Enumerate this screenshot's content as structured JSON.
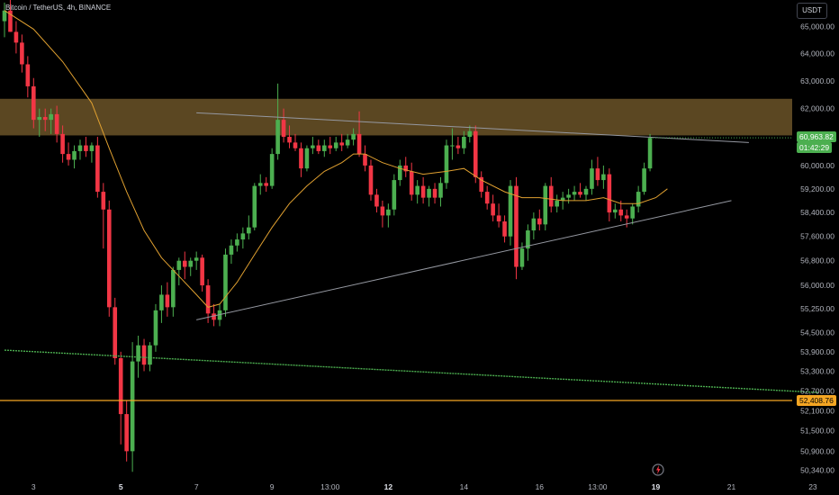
{
  "header": {
    "title": "Bitcoin / TetherUS, 4h, BINANCE",
    "currency_button": "USDT"
  },
  "price_labels": {
    "last_price": "60,963.82",
    "countdown": "01:42:29",
    "level_price": "52,408.76"
  },
  "colors": {
    "up": "#26a69a",
    "up_bright": "#4caf50",
    "down": "#f23645",
    "ma": "#e0a030",
    "zone": "#6b5328",
    "support_line": "#4caf50",
    "level_line": "#f5a623",
    "trendline": "#9598a1"
  },
  "icons": {
    "logo": "tradingview-logo-icon"
  },
  "chart_data": {
    "type": "candlestick",
    "title": "Bitcoin / TetherUS, 4h, BINANCE",
    "timeframe": "4h",
    "y_axis": {
      "scale": "log",
      "range": [
        50150,
        66000
      ],
      "tick_labels": [
        "65,000.00",
        "64,000.00",
        "63,000.00",
        "62,000.00",
        "61,000.00",
        "60,000.00",
        "59,200.00",
        "58,400.00",
        "57,600.00",
        "56,800.00",
        "56,000.00",
        "55,250.00",
        "54,500.00",
        "53,900.00",
        "53,300.00",
        "52,700.00",
        "52,100.00",
        "51,500.00",
        "50,900.00",
        "50,340.00"
      ],
      "tick_values": [
        65000,
        64000,
        63000,
        62000,
        61000,
        60000,
        59200,
        58400,
        57600,
        56800,
        56000,
        55250,
        54500,
        53900,
        53300,
        52700,
        52100,
        51500,
        50900,
        50340
      ]
    },
    "x_axis": {
      "tick_labels": [
        "3",
        "5",
        "7",
        "9",
        "13:00",
        "12",
        "14",
        "16",
        "13:00",
        "19",
        "21",
        "23"
      ],
      "tick_bar_index": [
        5,
        20,
        33,
        46,
        56,
        66,
        79,
        92,
        102,
        112,
        125,
        139
      ],
      "bold_ticks": [
        "5",
        "12",
        "19"
      ]
    },
    "candles": [
      {
        "o": 65200,
        "h": 65900,
        "l": 64600,
        "c": 65600
      },
      {
        "o": 65600,
        "h": 66000,
        "l": 64800,
        "c": 64800
      },
      {
        "o": 64800,
        "h": 65200,
        "l": 64000,
        "c": 64400
      },
      {
        "o": 64400,
        "h": 64700,
        "l": 63300,
        "c": 63600
      },
      {
        "o": 63600,
        "h": 63900,
        "l": 62400,
        "c": 62800
      },
      {
        "o": 62800,
        "h": 63100,
        "l": 61300,
        "c": 61600
      },
      {
        "o": 61600,
        "h": 62000,
        "l": 61000,
        "c": 61700
      },
      {
        "o": 61700,
        "h": 62000,
        "l": 61200,
        "c": 61600
      },
      {
        "o": 61600,
        "h": 62000,
        "l": 61100,
        "c": 61800
      },
      {
        "o": 61800,
        "h": 62100,
        "l": 60800,
        "c": 61100
      },
      {
        "o": 61100,
        "h": 61400,
        "l": 60100,
        "c": 60400
      },
      {
        "o": 60400,
        "h": 60800,
        "l": 60000,
        "c": 60200
      },
      {
        "o": 60200,
        "h": 60700,
        "l": 59900,
        "c": 60500
      },
      {
        "o": 60500,
        "h": 60900,
        "l": 60200,
        "c": 60700
      },
      {
        "o": 60700,
        "h": 61000,
        "l": 60300,
        "c": 60500
      },
      {
        "o": 60500,
        "h": 60800,
        "l": 60100,
        "c": 60700
      },
      {
        "o": 60700,
        "h": 61000,
        "l": 58900,
        "c": 59100
      },
      {
        "o": 59100,
        "h": 59400,
        "l": 57200,
        "c": 58500
      },
      {
        "o": 58500,
        "h": 58800,
        "l": 55000,
        "c": 55300
      },
      {
        "o": 55300,
        "h": 55600,
        "l": 53500,
        "c": 53700
      },
      {
        "o": 53700,
        "h": 53900,
        "l": 51100,
        "c": 52000
      },
      {
        "o": 52000,
        "h": 52400,
        "l": 50600,
        "c": 50900
      },
      {
        "o": 50900,
        "h": 54200,
        "l": 50300,
        "c": 53600
      },
      {
        "o": 53600,
        "h": 54400,
        "l": 53100,
        "c": 54100
      },
      {
        "o": 54100,
        "h": 54300,
        "l": 53300,
        "c": 53500
      },
      {
        "o": 53500,
        "h": 54200,
        "l": 53300,
        "c": 54100
      },
      {
        "o": 54100,
        "h": 55400,
        "l": 53900,
        "c": 55200
      },
      {
        "o": 55200,
        "h": 56000,
        "l": 54800,
        "c": 55700
      },
      {
        "o": 55700,
        "h": 56100,
        "l": 55000,
        "c": 55300
      },
      {
        "o": 55300,
        "h": 56600,
        "l": 55000,
        "c": 56500
      },
      {
        "o": 56500,
        "h": 56900,
        "l": 56000,
        "c": 56800
      },
      {
        "o": 56800,
        "h": 57100,
        "l": 56200,
        "c": 56600
      },
      {
        "o": 56600,
        "h": 56900,
        "l": 56300,
        "c": 56800
      },
      {
        "o": 56800,
        "h": 57100,
        "l": 56500,
        "c": 56900
      },
      {
        "o": 56900,
        "h": 57000,
        "l": 55800,
        "c": 56000
      },
      {
        "o": 56000,
        "h": 56200,
        "l": 54800,
        "c": 55100
      },
      {
        "o": 55100,
        "h": 55400,
        "l": 54700,
        "c": 54900
      },
      {
        "o": 54900,
        "h": 55400,
        "l": 54700,
        "c": 55200
      },
      {
        "o": 55200,
        "h": 57200,
        "l": 55000,
        "c": 57000
      },
      {
        "o": 57000,
        "h": 57500,
        "l": 56700,
        "c": 57300
      },
      {
        "o": 57300,
        "h": 57700,
        "l": 57100,
        "c": 57500
      },
      {
        "o": 57500,
        "h": 57900,
        "l": 57200,
        "c": 57700
      },
      {
        "o": 57700,
        "h": 58300,
        "l": 57500,
        "c": 57900
      },
      {
        "o": 57900,
        "h": 59400,
        "l": 57800,
        "c": 59300
      },
      {
        "o": 59300,
        "h": 59700,
        "l": 59000,
        "c": 59400
      },
      {
        "o": 59400,
        "h": 59600,
        "l": 59100,
        "c": 59300
      },
      {
        "o": 59300,
        "h": 60600,
        "l": 59200,
        "c": 60400
      },
      {
        "o": 60400,
        "h": 62900,
        "l": 60200,
        "c": 61600
      },
      {
        "o": 61600,
        "h": 62000,
        "l": 60800,
        "c": 61000
      },
      {
        "o": 61000,
        "h": 61400,
        "l": 60600,
        "c": 60800
      },
      {
        "o": 60800,
        "h": 61100,
        "l": 60500,
        "c": 60600
      },
      {
        "o": 60600,
        "h": 60800,
        "l": 59600,
        "c": 59900
      },
      {
        "o": 59900,
        "h": 60700,
        "l": 59800,
        "c": 60600
      },
      {
        "o": 60600,
        "h": 61000,
        "l": 60400,
        "c": 60700
      },
      {
        "o": 60700,
        "h": 60900,
        "l": 60400,
        "c": 60500
      },
      {
        "o": 60500,
        "h": 60900,
        "l": 60300,
        "c": 60700
      },
      {
        "o": 60700,
        "h": 61000,
        "l": 60400,
        "c": 60600
      },
      {
        "o": 60600,
        "h": 61000,
        "l": 60500,
        "c": 60800
      },
      {
        "o": 60800,
        "h": 61100,
        "l": 60500,
        "c": 60700
      },
      {
        "o": 60700,
        "h": 61100,
        "l": 60600,
        "c": 60900
      },
      {
        "o": 60900,
        "h": 61300,
        "l": 60700,
        "c": 61100
      },
      {
        "o": 61100,
        "h": 61900,
        "l": 60300,
        "c": 60400
      },
      {
        "o": 60400,
        "h": 60700,
        "l": 59800,
        "c": 60000
      },
      {
        "o": 60000,
        "h": 60200,
        "l": 58800,
        "c": 59000
      },
      {
        "o": 59000,
        "h": 59200,
        "l": 58400,
        "c": 58600
      },
      {
        "o": 58600,
        "h": 58800,
        "l": 57900,
        "c": 58300
      },
      {
        "o": 58300,
        "h": 58700,
        "l": 57900,
        "c": 58500
      },
      {
        "o": 58500,
        "h": 59700,
        "l": 58300,
        "c": 59500
      },
      {
        "o": 59500,
        "h": 60200,
        "l": 59300,
        "c": 60000
      },
      {
        "o": 60000,
        "h": 60300,
        "l": 59600,
        "c": 59800
      },
      {
        "o": 59800,
        "h": 60100,
        "l": 58800,
        "c": 59000
      },
      {
        "o": 59000,
        "h": 59500,
        "l": 58700,
        "c": 59300
      },
      {
        "o": 59300,
        "h": 59600,
        "l": 58700,
        "c": 58900
      },
      {
        "o": 58900,
        "h": 59300,
        "l": 58600,
        "c": 59200
      },
      {
        "o": 59200,
        "h": 59400,
        "l": 58700,
        "c": 58900
      },
      {
        "o": 58900,
        "h": 59600,
        "l": 58600,
        "c": 59400
      },
      {
        "o": 59400,
        "h": 60900,
        "l": 59200,
        "c": 60700
      },
      {
        "o": 60700,
        "h": 61300,
        "l": 60200,
        "c": 60700
      },
      {
        "o": 60700,
        "h": 61000,
        "l": 60400,
        "c": 60600
      },
      {
        "o": 60600,
        "h": 61200,
        "l": 60400,
        "c": 61000
      },
      {
        "o": 61000,
        "h": 61400,
        "l": 60800,
        "c": 61200
      },
      {
        "o": 61200,
        "h": 61400,
        "l": 59400,
        "c": 59600
      },
      {
        "o": 59600,
        "h": 59800,
        "l": 58900,
        "c": 59100
      },
      {
        "o": 59100,
        "h": 59300,
        "l": 58500,
        "c": 58700
      },
      {
        "o": 58700,
        "h": 59000,
        "l": 58100,
        "c": 58300
      },
      {
        "o": 58300,
        "h": 58700,
        "l": 57900,
        "c": 58100
      },
      {
        "o": 58100,
        "h": 58300,
        "l": 57400,
        "c": 57600
      },
      {
        "o": 57600,
        "h": 59500,
        "l": 57300,
        "c": 59300
      },
      {
        "o": 59300,
        "h": 59600,
        "l": 56200,
        "c": 56600
      },
      {
        "o": 56600,
        "h": 57400,
        "l": 56500,
        "c": 57200
      },
      {
        "o": 57200,
        "h": 58000,
        "l": 56800,
        "c": 57800
      },
      {
        "o": 57800,
        "h": 58400,
        "l": 57500,
        "c": 58200
      },
      {
        "o": 58200,
        "h": 58500,
        "l": 57800,
        "c": 58000
      },
      {
        "o": 58000,
        "h": 59400,
        "l": 57800,
        "c": 59300
      },
      {
        "o": 59300,
        "h": 59600,
        "l": 58400,
        "c": 58600
      },
      {
        "o": 58600,
        "h": 59000,
        "l": 58400,
        "c": 58800
      },
      {
        "o": 58800,
        "h": 59100,
        "l": 58500,
        "c": 58900
      },
      {
        "o": 58900,
        "h": 59200,
        "l": 58700,
        "c": 59000
      },
      {
        "o": 59000,
        "h": 59300,
        "l": 58800,
        "c": 59100
      },
      {
        "o": 59100,
        "h": 59400,
        "l": 58900,
        "c": 59000
      },
      {
        "o": 59000,
        "h": 59300,
        "l": 58800,
        "c": 59200
      },
      {
        "o": 59200,
        "h": 60200,
        "l": 59000,
        "c": 59900
      },
      {
        "o": 59900,
        "h": 60300,
        "l": 59300,
        "c": 59500
      },
      {
        "o": 59500,
        "h": 60000,
        "l": 59200,
        "c": 59700
      },
      {
        "o": 59700,
        "h": 59900,
        "l": 58100,
        "c": 58400
      },
      {
        "o": 58400,
        "h": 58700,
        "l": 58200,
        "c": 58500
      },
      {
        "o": 58500,
        "h": 58800,
        "l": 58100,
        "c": 58300
      },
      {
        "o": 58300,
        "h": 58500,
        "l": 57900,
        "c": 58200
      },
      {
        "o": 58200,
        "h": 58700,
        "l": 58000,
        "c": 58600
      },
      {
        "o": 58600,
        "h": 59300,
        "l": 58400,
        "c": 59100
      },
      {
        "o": 59100,
        "h": 60100,
        "l": 59000,
        "c": 59900
      },
      {
        "o": 59900,
        "h": 61100,
        "l": 59800,
        "c": 60964
      }
    ],
    "moving_average": [
      {
        "i": 0,
        "v": 65600
      },
      {
        "i": 5,
        "v": 64900
      },
      {
        "i": 10,
        "v": 63700
      },
      {
        "i": 15,
        "v": 62200
      },
      {
        "i": 18,
        "v": 60600
      },
      {
        "i": 21,
        "v": 59100
      },
      {
        "i": 24,
        "v": 57800
      },
      {
        "i": 27,
        "v": 56900
      },
      {
        "i": 30,
        "v": 56300
      },
      {
        "i": 33,
        "v": 55700
      },
      {
        "i": 35,
        "v": 55300
      },
      {
        "i": 37,
        "v": 55400
      },
      {
        "i": 40,
        "v": 56100
      },
      {
        "i": 43,
        "v": 57000
      },
      {
        "i": 46,
        "v": 57900
      },
      {
        "i": 49,
        "v": 58700
      },
      {
        "i": 52,
        "v": 59300
      },
      {
        "i": 55,
        "v": 59800
      },
      {
        "i": 58,
        "v": 60100
      },
      {
        "i": 60,
        "v": 60400
      },
      {
        "i": 62,
        "v": 60400
      },
      {
        "i": 65,
        "v": 60100
      },
      {
        "i": 68,
        "v": 59900
      },
      {
        "i": 72,
        "v": 59700
      },
      {
        "i": 76,
        "v": 59800
      },
      {
        "i": 79,
        "v": 59900
      },
      {
        "i": 82,
        "v": 59500
      },
      {
        "i": 86,
        "v": 59100
      },
      {
        "i": 89,
        "v": 58900
      },
      {
        "i": 92,
        "v": 58900
      },
      {
        "i": 96,
        "v": 58800
      },
      {
        "i": 100,
        "v": 58800
      },
      {
        "i": 103,
        "v": 58900
      },
      {
        "i": 106,
        "v": 58700
      },
      {
        "i": 109,
        "v": 58700
      },
      {
        "i": 112,
        "v": 58900
      },
      {
        "i": 114,
        "v": 59200
      }
    ],
    "resistance_zone": [
      61050,
      62350
    ],
    "horizontal_level": 52408.76,
    "trendlines": [
      {
        "name": "upper",
        "from": {
          "i": 33,
          "v": 61850
        },
        "to": {
          "i": 128,
          "v": 60800
        }
      },
      {
        "name": "lower",
        "from": {
          "i": 33,
          "v": 54900
        },
        "to": {
          "i": 125,
          "v": 58800
        }
      },
      {
        "name": "support",
        "from": {
          "i": 0,
          "v": 53950
        },
        "to": {
          "i": 140,
          "v": 52650
        }
      }
    ],
    "last_price": 60963.82
  }
}
